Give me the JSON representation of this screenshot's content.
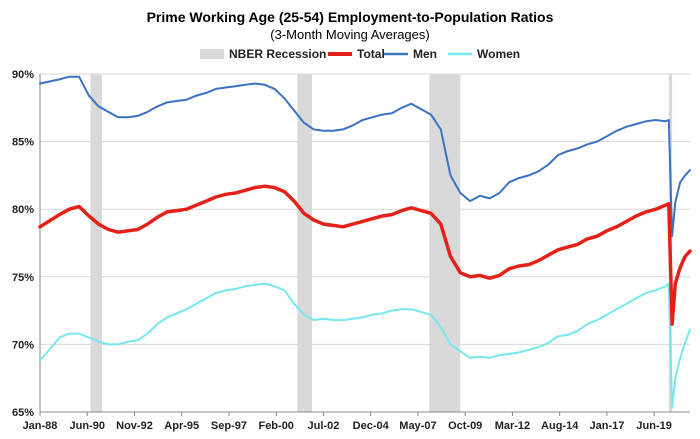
{
  "chart_data": {
    "type": "line",
    "title": "Prime Working Age (25-54) Employment-to-Population Ratios",
    "subtitle": "(3-Month Moving Averages)",
    "x_start": "Jan-88",
    "x_end": "Mar-21",
    "x_tick_labels": [
      "Jan-88",
      "Jun-90",
      "Nov-92",
      "Apr-95",
      "Sep-97",
      "Feb-00",
      "Jul-02",
      "Dec-04",
      "May-07",
      "Oct-09",
      "Mar-12",
      "Aug-14",
      "Jan-17",
      "Jun-19"
    ],
    "x_tick_positions_years": [
      1988.0,
      1990.4167,
      1992.8333,
      1995.25,
      1997.6667,
      2000.0833,
      2002.5,
      2004.9167,
      2007.3333,
      2009.75,
      2012.1667,
      2014.5833,
      2017.0,
      2019.4167
    ],
    "ylim": [
      65,
      90
    ],
    "y_ticks": [
      65,
      70,
      75,
      80,
      85,
      90
    ],
    "y_tick_labels": [
      "65%",
      "70%",
      "75%",
      "80%",
      "85%",
      "90%"
    ],
    "grid": "horizontal",
    "legend_position": "top",
    "legend": [
      "NBER Recession",
      "Total",
      "Men",
      "Women"
    ],
    "recessions": [
      {
        "start": 1990.5833,
        "end": 1991.1667
      },
      {
        "start": 2001.1667,
        "end": 2001.9167
      },
      {
        "start": 2007.9167,
        "end": 2009.5
      },
      {
        "start": 2020.1667,
        "end": 2020.3333
      }
    ],
    "colors": {
      "recession": "#d9d9d9",
      "total": "#e32119",
      "men": "#3a72c4",
      "women": "#77e6ee"
    },
    "x": [
      1988.0,
      1989.0,
      1989.5,
      1990.0,
      1990.5,
      1991.0,
      1991.5,
      1992.0,
      1992.5,
      1993.0,
      1993.5,
      1994.0,
      1994.5,
      1995.0,
      1995.5,
      1996.0,
      1996.5,
      1997.0,
      1997.5,
      1998.0,
      1998.5,
      1999.0,
      1999.5,
      2000.0,
      2000.5,
      2001.0,
      2001.5,
      2002.0,
      2002.5,
      2003.0,
      2003.5,
      2004.0,
      2004.5,
      2005.0,
      2005.5,
      2006.0,
      2006.5,
      2007.0,
      2007.5,
      2008.0,
      2008.5,
      2009.0,
      2009.5,
      2010.0,
      2010.5,
      2011.0,
      2011.5,
      2012.0,
      2012.5,
      2013.0,
      2013.5,
      2014.0,
      2014.5,
      2015.0,
      2015.5,
      2016.0,
      2016.5,
      2017.0,
      2017.5,
      2018.0,
      2018.5,
      2019.0,
      2019.5,
      2020.0,
      2020.1667,
      2020.3333,
      2020.5,
      2020.75,
      2021.0,
      2021.25
    ],
    "series": [
      {
        "name": "Total",
        "values": [
          78.7,
          79.6,
          80.0,
          80.2,
          79.5,
          78.9,
          78.5,
          78.3,
          78.4,
          78.5,
          78.9,
          79.4,
          79.8,
          79.9,
          80.0,
          80.3,
          80.6,
          80.9,
          81.1,
          81.2,
          81.4,
          81.6,
          81.7,
          81.6,
          81.3,
          80.6,
          79.7,
          79.2,
          78.9,
          78.8,
          78.7,
          78.9,
          79.1,
          79.3,
          79.5,
          79.6,
          79.9,
          80.1,
          79.9,
          79.7,
          78.9,
          76.5,
          75.3,
          75.0,
          75.1,
          74.9,
          75.1,
          75.6,
          75.8,
          75.9,
          76.2,
          76.6,
          77.0,
          77.2,
          77.4,
          77.8,
          78.0,
          78.4,
          78.7,
          79.1,
          79.5,
          79.8,
          80.0,
          80.3,
          80.4,
          71.5,
          74.5,
          75.7,
          76.5,
          76.9
        ]
      },
      {
        "name": "Men",
        "values": [
          89.3,
          89.6,
          89.8,
          89.8,
          88.4,
          87.6,
          87.2,
          86.8,
          86.8,
          86.9,
          87.2,
          87.6,
          87.9,
          88.0,
          88.1,
          88.4,
          88.6,
          88.9,
          89.0,
          89.1,
          89.2,
          89.3,
          89.2,
          88.9,
          88.2,
          87.3,
          86.4,
          85.9,
          85.8,
          85.8,
          85.9,
          86.2,
          86.6,
          86.8,
          87.0,
          87.1,
          87.5,
          87.8,
          87.4,
          87.0,
          85.9,
          82.5,
          81.2,
          80.6,
          81.0,
          80.8,
          81.2,
          82.0,
          82.3,
          82.5,
          82.8,
          83.3,
          84.0,
          84.3,
          84.5,
          84.8,
          85.0,
          85.4,
          85.8,
          86.1,
          86.3,
          86.5,
          86.6,
          86.5,
          86.6,
          78.0,
          80.5,
          82.0,
          82.5,
          82.9
        ]
      },
      {
        "name": "Women",
        "values": [
          68.8,
          70.5,
          70.8,
          70.8,
          70.5,
          70.2,
          70.0,
          70.0,
          70.2,
          70.3,
          70.8,
          71.5,
          72.0,
          72.3,
          72.6,
          73.0,
          73.4,
          73.8,
          74.0,
          74.1,
          74.3,
          74.4,
          74.5,
          74.3,
          74.0,
          73.0,
          72.2,
          71.8,
          71.9,
          71.8,
          71.8,
          71.9,
          72.0,
          72.2,
          72.3,
          72.5,
          72.6,
          72.6,
          72.4,
          72.2,
          71.3,
          70.0,
          69.5,
          69.0,
          69.1,
          69.0,
          69.2,
          69.3,
          69.4,
          69.6,
          69.8,
          70.1,
          70.6,
          70.7,
          71.0,
          71.5,
          71.8,
          72.2,
          72.6,
          73.0,
          73.4,
          73.8,
          74.0,
          74.3,
          74.5,
          65.3,
          67.5,
          69.0,
          70.1,
          71.1
        ]
      }
    ]
  }
}
